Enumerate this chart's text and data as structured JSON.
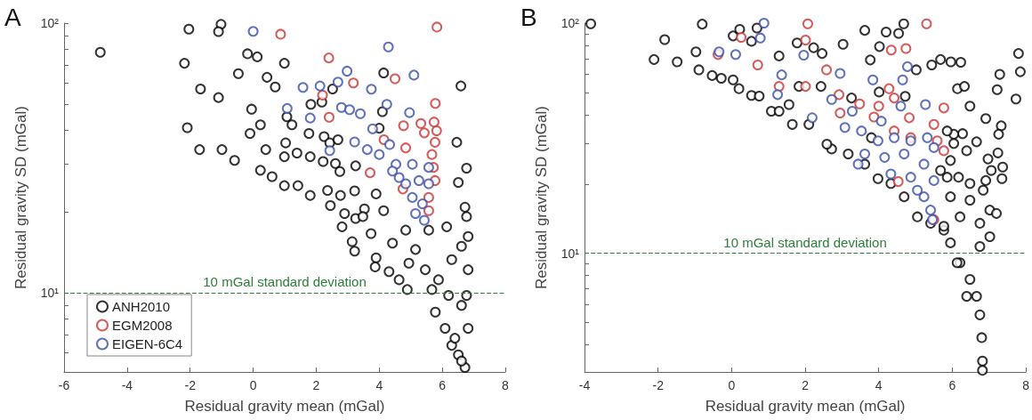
{
  "chart_data": [
    {
      "type": "scatter",
      "title": "A",
      "xlabel": "Residual gravity mean (mGal)",
      "ylabel": "Residual gravity SD (mGal)",
      "log": "y",
      "marker": "circle",
      "grid": false,
      "legend": "bottom left",
      "xlim": [
        -6,
        8
      ],
      "xticks": [
        -6,
        -4,
        -2,
        0,
        2,
        4,
        6,
        8
      ],
      "ylim": [
        5.1,
        100
      ],
      "yticks": [
        {
          "value": 6,
          "label": null
        },
        {
          "value": 7,
          "label": null
        },
        {
          "value": 8,
          "label": null
        },
        {
          "value": 9,
          "label": null
        },
        {
          "value": 10,
          "label": "10¹"
        },
        {
          "value": 20,
          "label": null
        },
        {
          "value": 30,
          "label": null
        },
        {
          "value": 40,
          "label": null
        },
        {
          "value": 50,
          "label": null
        },
        {
          "value": 60,
          "label": null
        },
        {
          "value": 70,
          "label": null
        },
        {
          "value": 80,
          "label": null
        },
        {
          "value": 90,
          "label": null
        },
        {
          "value": 100,
          "label": "10²"
        }
      ],
      "ref_lines": [
        {
          "axis": "y",
          "value": 10,
          "label": "10 mGal standard deviation",
          "color": "#2e7d3a",
          "line_style": "dashed"
        }
      ],
      "series": [
        {
          "name": "ANH2010",
          "color": "#000000",
          "x": [
            -4.85,
            -2.04,
            -1.02,
            -1.1,
            -2.18,
            -1.67,
            -1.1,
            -2.09,
            -1.7,
            -0.99,
            -0.59,
            -0.18,
            0.13,
            -0.47,
            0.99,
            0.44,
            0.7,
            -0.05,
            -0.1,
            0.23,
            0.4,
            0.23,
            0.6,
            0.99,
            0.99,
            1.03,
            1.07,
            1.23,
            1.83,
            2.18,
            2.52,
            1.77,
            1.39,
            1.81,
            1.42,
            1.81,
            2.36,
            2.25,
            2.43,
            2.69,
            2.22,
            2.61,
            2.75,
            2.45,
            2.77,
            2.9,
            2.82,
            3.25,
            3.22,
            3.25,
            3.14,
            3.22,
            3.53,
            3.74,
            3.9,
            3.9,
            3.87,
            4.14,
            4.31,
            4.63,
            4.89,
            4.42,
            4.84,
            5.15,
            5.46,
            5.67,
            5.78,
            6.09,
            6.3,
            6.51,
            6.72,
            6.82,
            6.77,
            6.82,
            6.61,
            6.82,
            6.77,
            6.72,
            6.51,
            6.77,
            6.46,
            6.59,
            6.14,
            6.3,
            6.61,
            6.4,
            6.61,
            4.1,
            4.14,
            4.0,
            5.57,
            4.94,
            5.88,
            6.2,
            3.48
          ],
          "values": [
            78,
            95,
            99,
            93,
            71,
            57,
            53,
            41,
            34,
            34,
            31,
            77,
            75,
            65,
            71,
            63,
            58,
            48,
            39,
            42,
            34,
            28.5,
            27,
            25,
            32,
            36,
            45,
            42,
            50,
            51,
            57,
            39,
            33,
            32,
            25,
            23,
            24,
            38,
            36,
            37,
            30.7,
            30.2,
            28.2,
            21.1,
            23,
            19.7,
            17.6,
            18.9,
            23.9,
            29.6,
            15.5,
            14.3,
            20.5,
            16.6,
            23.3,
            13.5,
            12.5,
            20.2,
            12,
            11.2,
            10.3,
            15.3,
            17.1,
            14.5,
            12.2,
            10.3,
            8.5,
            7.4,
            6.4,
            5.9,
            5.3,
            7.4,
            9.8,
            12.2,
            14.9,
            16.2,
            19.2,
            20.8,
            25.7,
            29,
            36.2,
            58.5,
            17.6,
            13.3,
            9,
            6.8,
            5.6,
            47,
            65.4,
            40.8,
            17.1,
            12.9,
            11.2,
            9.8,
            19.2
          ]
        },
        {
          "name": "EGM2008",
          "color": "#cc3333",
          "x": [
            0.87,
            5.83,
            2.4,
            3.18,
            4.5,
            5.78,
            2.2,
            2.41,
            4.77,
            5.32,
            5.74,
            5.82,
            5.77,
            4.15,
            5.43,
            3.71,
            4.75,
            5.67,
            5.72,
            5.57,
            5.57,
            4.84,
            5.77
          ],
          "values": [
            91,
            96.7,
            74.3,
            60,
            62.2,
            50.4,
            54.1,
            44.8,
            41.7,
            42.5,
            43,
            39.9,
            36.2,
            37,
            39.2,
            27.9,
            24.3,
            32.6,
            29.2,
            20.2,
            22.6,
            34.5,
            26.1
          ]
        },
        {
          "name": "EIGEN-6C4",
          "color": "#3a4fa8",
          "x": [
            0.0,
            4.29,
            2.98,
            5.1,
            1.58,
            2.12,
            2.69,
            3.75,
            4.24,
            2.8,
            3.06,
            3.4,
            4.96,
            1.08,
            1.81,
            3.79,
            3.22,
            3.62,
            2.43,
            4.33,
            4.0,
            4.53,
            5.05,
            5.26,
            5.05,
            5.37,
            5.43,
            5.57,
            4.84,
            5.57,
            4.63,
            5.15,
            4.42
          ],
          "values": [
            93.2,
            81.6,
            66.4,
            64.2,
            57.8,
            58.5,
            60.5,
            56.9,
            50,
            48.7,
            47.8,
            46.2,
            46.6,
            48.3,
            44.5,
            40.6,
            36.3,
            34,
            33.7,
            35.5,
            32.6,
            30,
            30,
            26.1,
            22.6,
            21.4,
            18.6,
            25.4,
            25.4,
            29.2,
            26.8,
            19.7,
            28.3
          ]
        }
      ]
    },
    {
      "type": "scatter",
      "title": "B",
      "xlabel": "Residual gravity mean (mGal)",
      "ylabel": "Residual gravity SD (mGal)",
      "log": "y",
      "marker": "circle",
      "grid": false,
      "legend": false,
      "xlim": [
        -4,
        8
      ],
      "xticks": [
        -4,
        -2,
        0,
        2,
        4,
        6,
        8
      ],
      "ylim": [
        3.05,
        100
      ],
      "yticks": [
        {
          "value": 4,
          "label": null
        },
        {
          "value": 5,
          "label": null
        },
        {
          "value": 6,
          "label": null
        },
        {
          "value": 7,
          "label": null
        },
        {
          "value": 8,
          "label": null
        },
        {
          "value": 9,
          "label": null
        },
        {
          "value": 10,
          "label": "10¹"
        },
        {
          "value": 20,
          "label": null
        },
        {
          "value": 30,
          "label": null
        },
        {
          "value": 40,
          "label": null
        },
        {
          "value": 50,
          "label": null
        },
        {
          "value": 60,
          "label": null
        },
        {
          "value": 70,
          "label": null
        },
        {
          "value": 80,
          "label": null
        },
        {
          "value": 90,
          "label": null
        },
        {
          "value": 100,
          "label": "10²"
        }
      ],
      "ref_lines": [
        {
          "axis": "y",
          "value": 10,
          "label": "10 mGal standard deviation",
          "color": "#2e7d3a",
          "line_style": "dashed"
        }
      ],
      "series": [
        {
          "color": "#000000",
          "x": [
            -3.83,
            -2.11,
            -1.82,
            -1.48,
            -0.97,
            -0.89,
            -0.8,
            -0.53,
            -0.28,
            0.04,
            0.04,
            0.2,
            0.22,
            0.54,
            0.75,
            0.54,
            0.69,
            1.08,
            1.29,
            1.78,
            1.56,
            1.83,
            2.23,
            2.46,
            2.43,
            3.03,
            3.26,
            3.62,
            3.77,
            4.02,
            4.2,
            4.54,
            4.68,
            5.02,
            4.01,
            4.72,
            5.44,
            5.68,
            5.96,
            6.23,
            6.14,
            6.33,
            6.48,
            7.8,
            7.85,
            7.22,
            7.29,
            7.73,
            6.91,
            7.33,
            7.26,
            7.24,
            6.97,
            7.37,
            7.06,
            7.35,
            6.91,
            6.66,
            6.28,
            6.04,
            5.86,
            6.04,
            6.39,
            5.95,
            6.17,
            6.48,
            6.84,
            5.95,
            6.48,
            7.02,
            7.2,
            6.21,
            6.75,
            7.02,
            6.75,
            5.77,
            5.95,
            6.21,
            6.48,
            6.66,
            6.75,
            6.8,
            6.82,
            6.82,
            6.39,
            6.13,
            5.77,
            5.41,
            5.05,
            4.69,
            4.33,
            3.98,
            3.62,
            3.17,
            2.72,
            2.59,
            2.1,
            1.65,
            1.29,
            3.8,
            5.86,
            5.68
          ],
          "values": [
            99.3,
            69.5,
            84.8,
            67.9,
            75,
            62.7,
            99,
            59.2,
            57.6,
            88,
            56.7,
            51.9,
            94,
            48.5,
            48.2,
            83.4,
            95.2,
            41.4,
            72,
            82,
            44.3,
            53.1,
            78.2,
            73.8,
            53.1,
            80.9,
            47.3,
            93,
            69.2,
            79.1,
            91.5,
            90.3,
            99.3,
            62.7,
            50.2,
            48.1,
            65.8,
            69.5,
            67.9,
            67.6,
            51.9,
            53.1,
            43.6,
            73.8,
            61.5,
            51.4,
            59.9,
            46.8,
            38.5,
            35.8,
            32.9,
            27.3,
            25.7,
            23.7,
            22.9,
            21.1,
            20.7,
            30.5,
            33.1,
            32.9,
            34,
            30,
            27.9,
            25.3,
            21.4,
            20.1,
            18.8,
            17.6,
            17,
            15.4,
            14.9,
            14.4,
            13.5,
            11.8,
            10.7,
            12.6,
            11.1,
            9.1,
            7.7,
            6.5,
            5.4,
            4.3,
            3.4,
            3.1,
            6.5,
            9.1,
            13.1,
            13.5,
            14.4,
            17.6,
            20.1,
            21.1,
            24.4,
            27,
            28.4,
            29.8,
            36.3,
            36.3,
            41.4,
            31.8,
            21.4,
            22.9
          ]
        },
        {
          "color": "#cc3333",
          "x": [
            2.07,
            2.01,
            0.26,
            5.3,
            4.34,
            4.74,
            -0.37,
            0.71,
            2.58,
            4.28,
            2.01,
            1.29,
            2.92,
            3.48,
            4.0,
            4.42,
            2.95,
            3.87,
            4.83,
            5.77,
            5.5,
            5.59,
            5.77,
            4.53,
            5.5,
            4.87,
            4.42
          ],
          "values": [
            99.3,
            84.4,
            86.7,
            99.3,
            76.4,
            77.6,
            73.1,
            65.8,
            62.7,
            51.9,
            53.1,
            53.1,
            48.9,
            44.6,
            43.6,
            47.3,
            40.7,
            39.1,
            38.8,
            42.8,
            36.3,
            30.8,
            27.9,
            20.5,
            14,
            31.8,
            34
          ]
        },
        {
          "color": "#3a4fa8",
          "x": [
            0.88,
            0.11,
            -0.34,
            0.78,
            1.96,
            2.95,
            1.36,
            1.25,
            3.84,
            4.65,
            4.78,
            4.6,
            2.72,
            3.28,
            4.07,
            5.27,
            3.08,
            3.53,
            3.98,
            4.42,
            4.87,
            5.32,
            5.5,
            3.62,
            4.16,
            4.69,
            5.23,
            5.5,
            4.33,
            4.87,
            5.23,
            5.41,
            5.46,
            5.05,
            3.44,
            2.19
          ],
          "values": [
            100,
            73.1,
            75,
            86.2,
            72.6,
            60.5,
            59.6,
            48.9,
            56.7,
            56.7,
            64.7,
            43.6,
            46.6,
            41.4,
            37.5,
            44.3,
            35.2,
            34,
            30.8,
            31.8,
            30.8,
            31.8,
            28.8,
            27,
            26.1,
            27,
            24.4,
            20.7,
            22.1,
            21.4,
            17.6,
            15.4,
            14,
            18.8,
            24.4,
            38.8
          ]
        }
      ]
    }
  ]
}
